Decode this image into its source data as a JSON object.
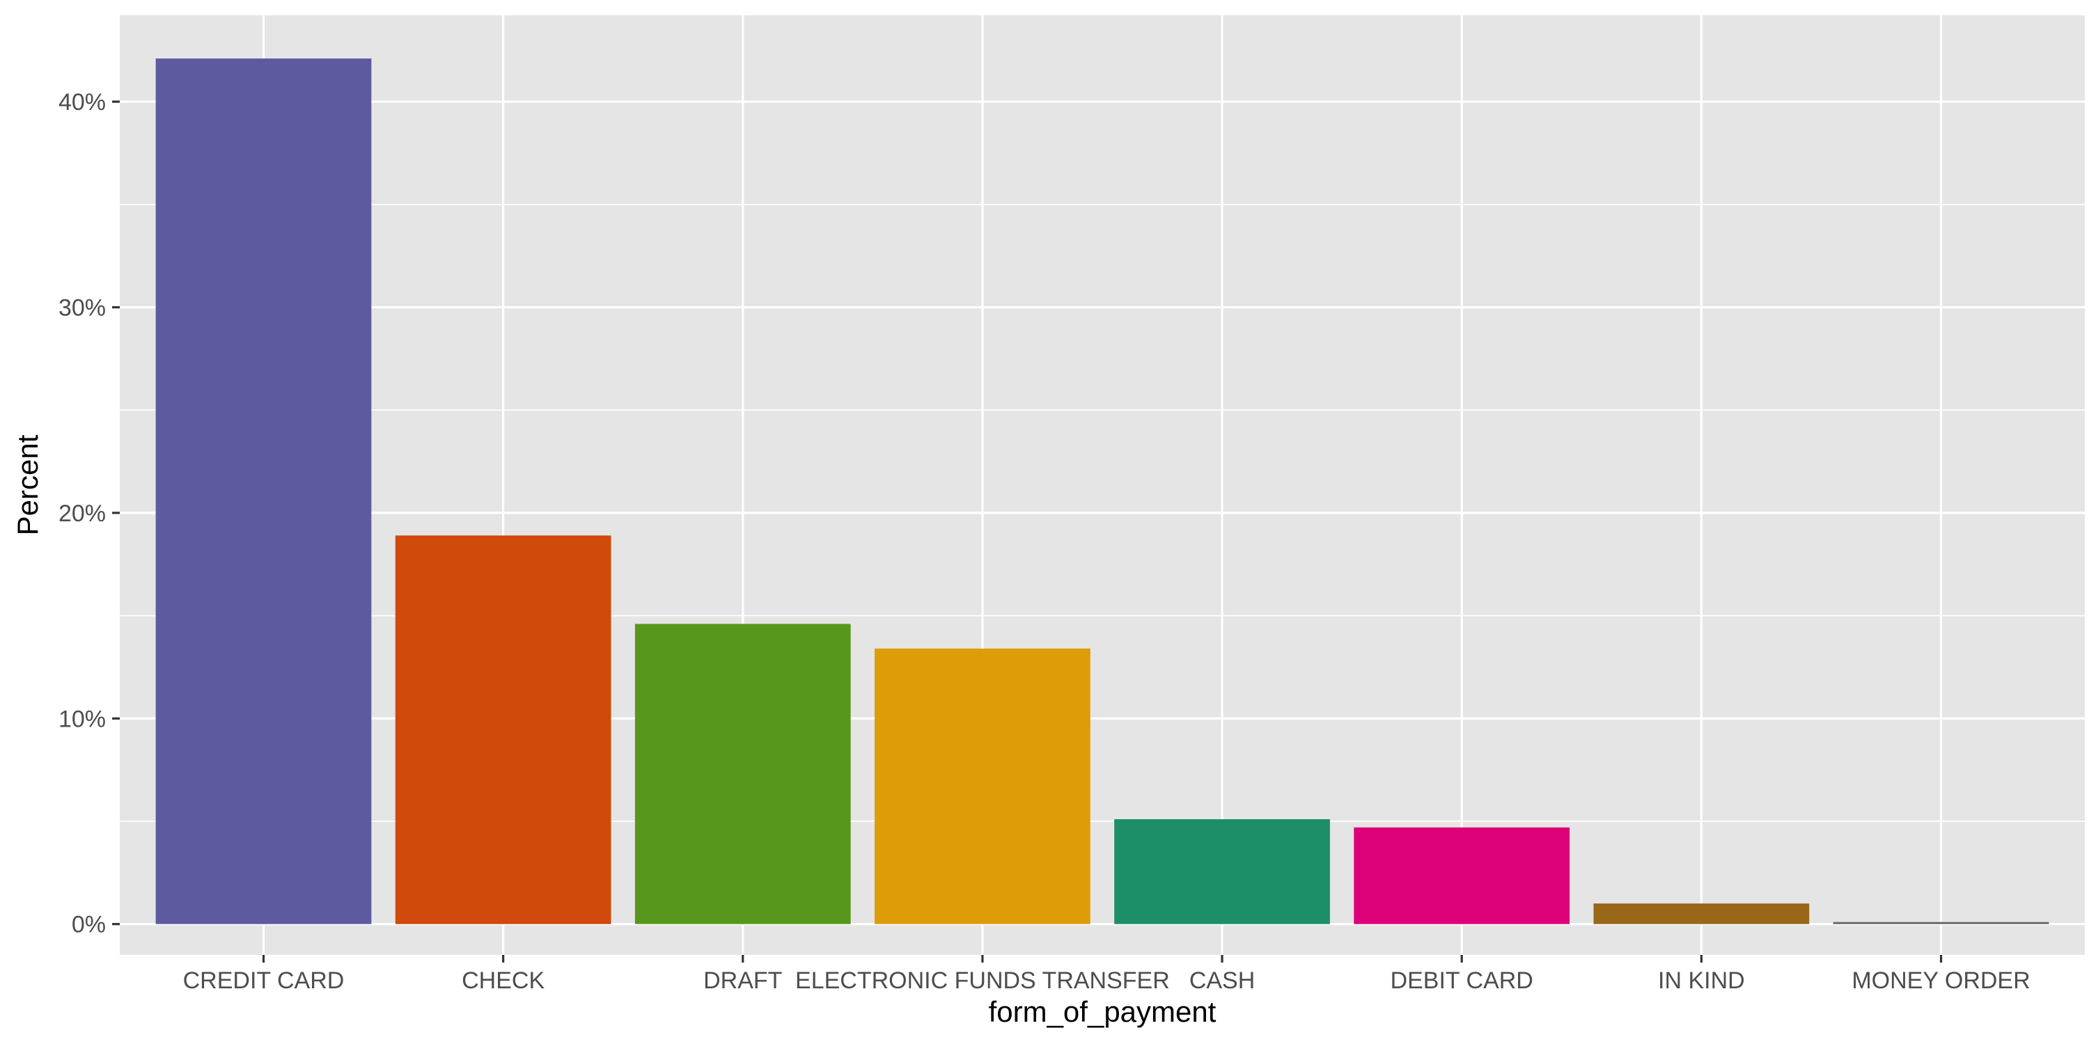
{
  "chart_data": {
    "type": "bar",
    "xlabel": "form_of_payment",
    "ylabel": "Percent",
    "categories": [
      "CREDIT CARD",
      "CHECK",
      "DRAFT",
      "ELECTRONIC FUNDS TRANSFER",
      "CASH",
      "DEBIT CARD",
      "IN KIND",
      "MONEY ORDER"
    ],
    "values": [
      42.1,
      18.9,
      14.6,
      13.4,
      5.1,
      4.7,
      1.0,
      0.1
    ],
    "colors": [
      "#5e5aa2",
      "#cf4a0b",
      "#57981c",
      "#dd9c08",
      "#1c8f68",
      "#dd0078",
      "#986719",
      "#666666"
    ],
    "ylim": [
      -1.5,
      44.2
    ],
    "yticks": [
      0,
      10,
      20,
      30,
      40
    ],
    "ytick_labels": [
      "0%",
      "10%",
      "20%",
      "30%",
      "40%"
    ],
    "grid": true,
    "legend": "none",
    "panel_background": "#e5e5e5",
    "grid_color": "#ffffff"
  }
}
